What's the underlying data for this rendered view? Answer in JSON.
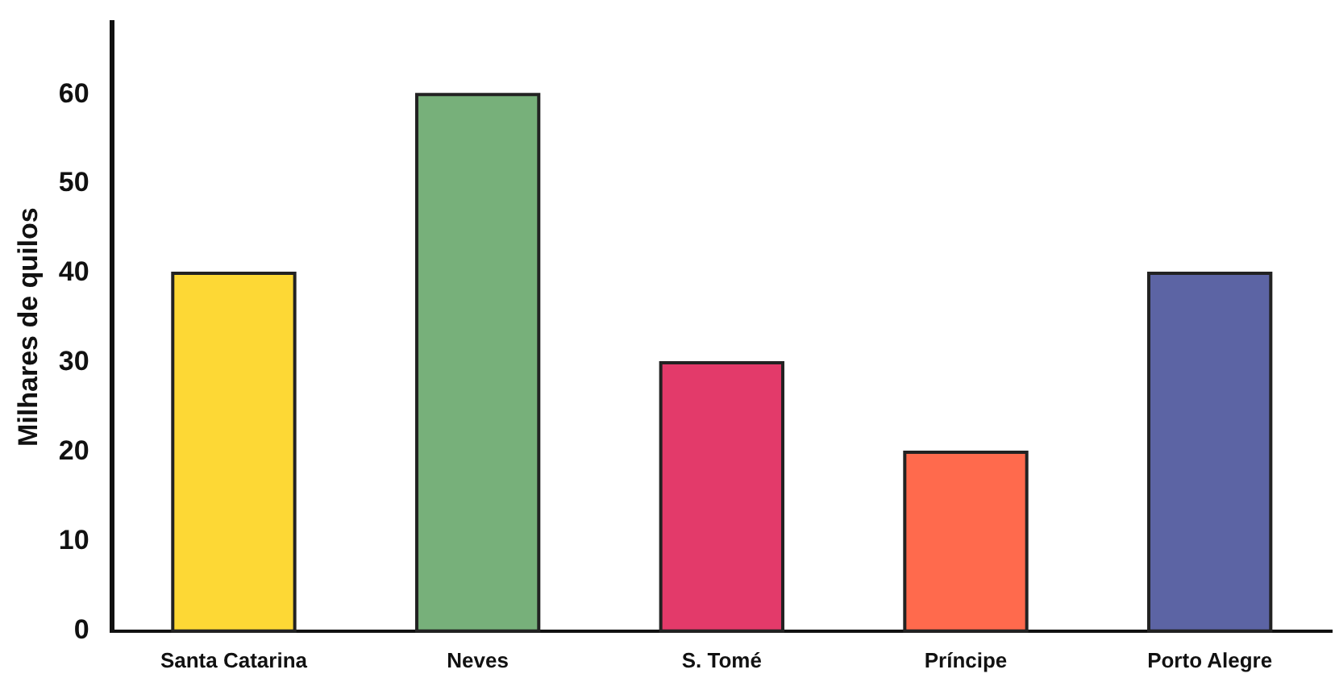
{
  "chart_data": {
    "type": "bar",
    "ylabel": "Milhares de quilos",
    "categories": [
      "Santa Catarina",
      "Neves",
      "S. Tomé",
      "Príncipe",
      "Porto Alegre"
    ],
    "values": [
      40,
      60,
      30,
      20,
      40
    ],
    "colors": [
      "#fdd835",
      "#77b07a",
      "#e33a6a",
      "#ff6a4d",
      "#5c64a4"
    ],
    "ylim": [
      0,
      68
    ],
    "yticks": [
      0,
      10,
      20,
      30,
      40,
      50,
      60
    ],
    "grid": false,
    "legend": false
  }
}
